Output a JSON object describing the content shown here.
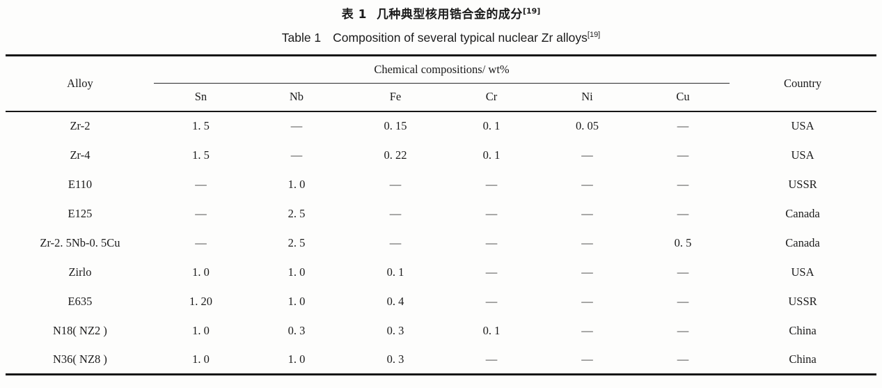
{
  "page": {
    "title_cn": {
      "prefix": "表 1",
      "text": "几种典型核用锆合金的成分",
      "ref": "[19]"
    },
    "title_en": {
      "prefix": "Table 1",
      "text": "Composition of several typical nuclear Zr alloys",
      "ref": "[19]"
    }
  },
  "table": {
    "header": {
      "alloy": "Alloy",
      "group": "Chemical compositions/ wt%",
      "elements": [
        "Sn",
        "Nb",
        "Fe",
        "Cr",
        "Ni",
        "Cu"
      ],
      "country": "Country"
    },
    "rows": [
      {
        "alloy": "Zr-2",
        "values": [
          "1. 5",
          "—",
          "0. 15",
          "0. 1",
          "0. 05",
          "—"
        ],
        "country": "USA"
      },
      {
        "alloy": "Zr-4",
        "values": [
          "1. 5",
          "—",
          "0. 22",
          "0. 1",
          "—",
          "—"
        ],
        "country": "USA"
      },
      {
        "alloy": "E110",
        "values": [
          "—",
          "1. 0",
          "—",
          "—",
          "—",
          "—"
        ],
        "country": "USSR"
      },
      {
        "alloy": "E125",
        "values": [
          "—",
          "2. 5",
          "—",
          "—",
          "—",
          "—"
        ],
        "country": "Canada"
      },
      {
        "alloy": "Zr-2. 5Nb-0. 5Cu",
        "values": [
          "—",
          "2. 5",
          "—",
          "—",
          "—",
          "0. 5"
        ],
        "country": "Canada"
      },
      {
        "alloy": "Zirlo",
        "values": [
          "1. 0",
          "1. 0",
          "0. 1",
          "—",
          "—",
          "—"
        ],
        "country": "USA"
      },
      {
        "alloy": "E635",
        "values": [
          "1. 20",
          "1. 0",
          "0. 4",
          "—",
          "—",
          "—"
        ],
        "country": "USSR"
      },
      {
        "alloy": "N18( NZ2 )",
        "values": [
          "1. 0",
          "0. 3",
          "0. 3",
          "0. 1",
          "—",
          "—"
        ],
        "country": "China"
      },
      {
        "alloy": "N36( NZ8 )",
        "values": [
          "1. 0",
          "1. 0",
          "0. 3",
          "—",
          "—",
          "—"
        ],
        "country": "China"
      }
    ]
  }
}
